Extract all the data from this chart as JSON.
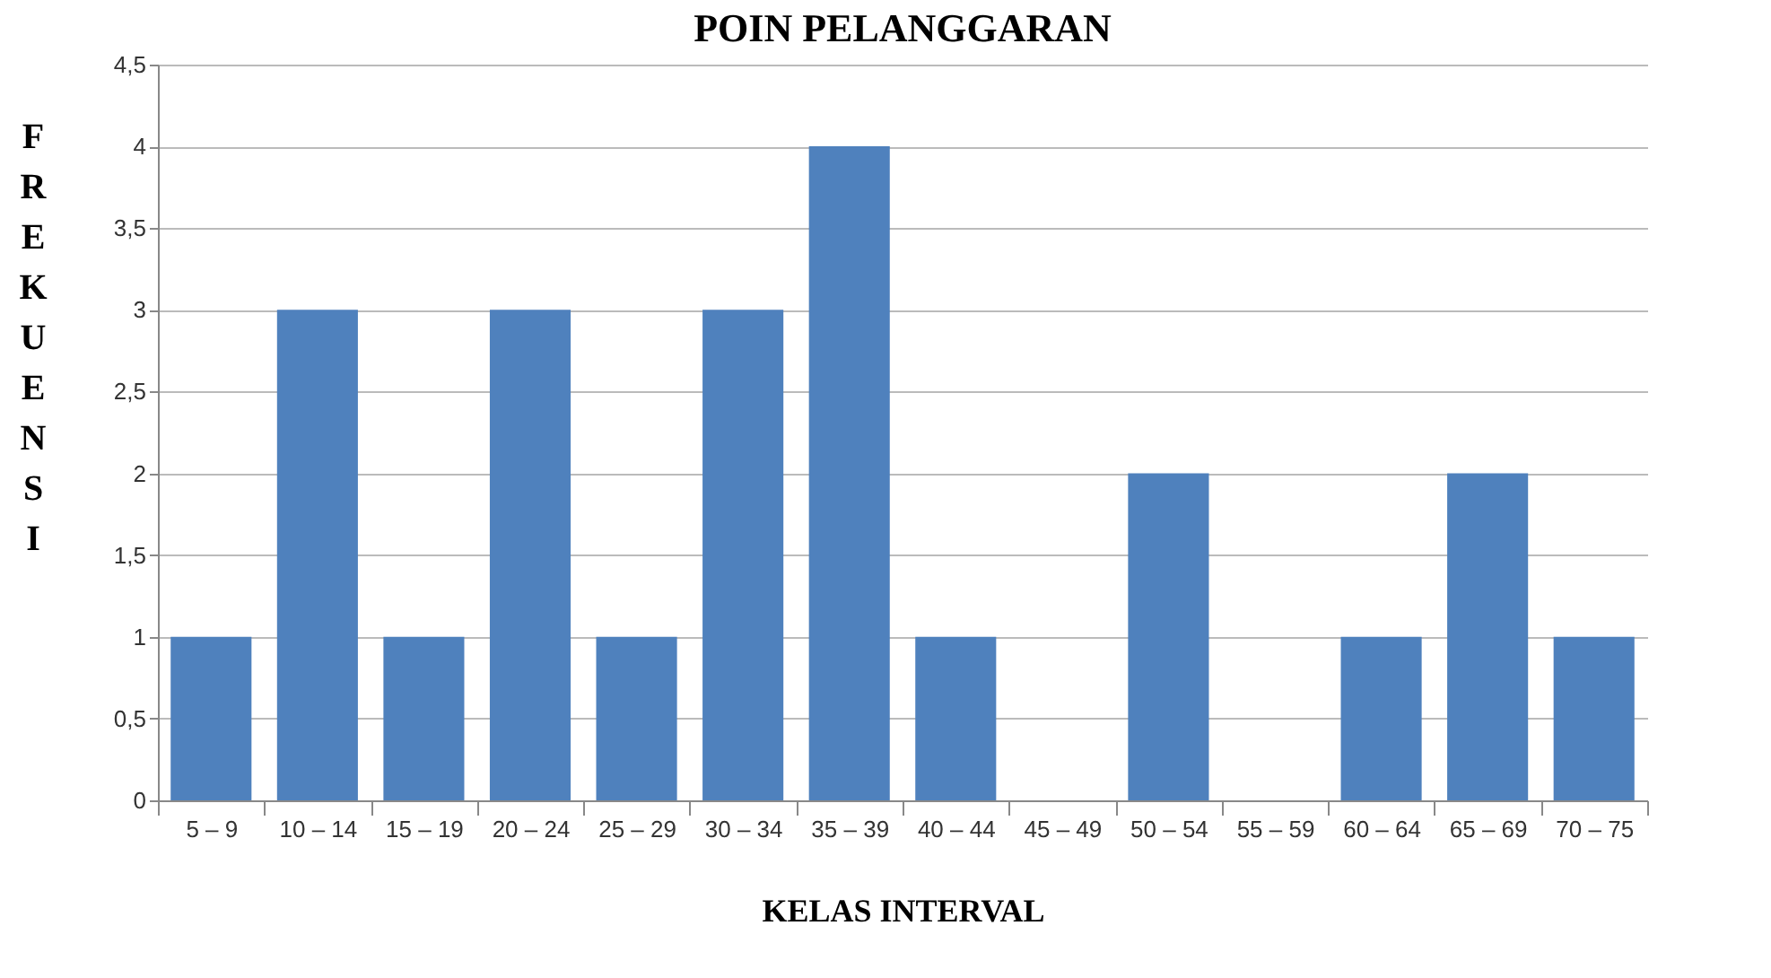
{
  "chart_data": {
    "type": "bar",
    "title": "POIN PELANGGARAN",
    "xlabel": "KELAS INTERVAL",
    "ylabel": "FREKUENSI",
    "categories": [
      "5 – 9",
      "10 – 14",
      "15 – 19",
      "20 – 24",
      "25 – 29",
      "30 – 34",
      "35 – 39",
      "40 – 44",
      "45 – 49",
      "50 – 54",
      "55 – 59",
      "60 – 64",
      "65 – 69",
      "70 – 75"
    ],
    "values": [
      1,
      3,
      1,
      3,
      1,
      3,
      4,
      1,
      0,
      2,
      0,
      1,
      2,
      1
    ],
    "color": "#4f81bd",
    "ylim": [
      0,
      4.5
    ],
    "yticks": [
      0,
      {
        "value": 0.5,
        "label": "0,5"
      },
      1,
      {
        "value": 1.5,
        "label": "1,5"
      },
      2,
      {
        "value": 2.5,
        "label": "2,5"
      },
      3,
      {
        "value": 3.5,
        "label": "3,5"
      },
      4,
      {
        "value": 4.5,
        "label": "4,5"
      }
    ],
    "grid": "y"
  }
}
